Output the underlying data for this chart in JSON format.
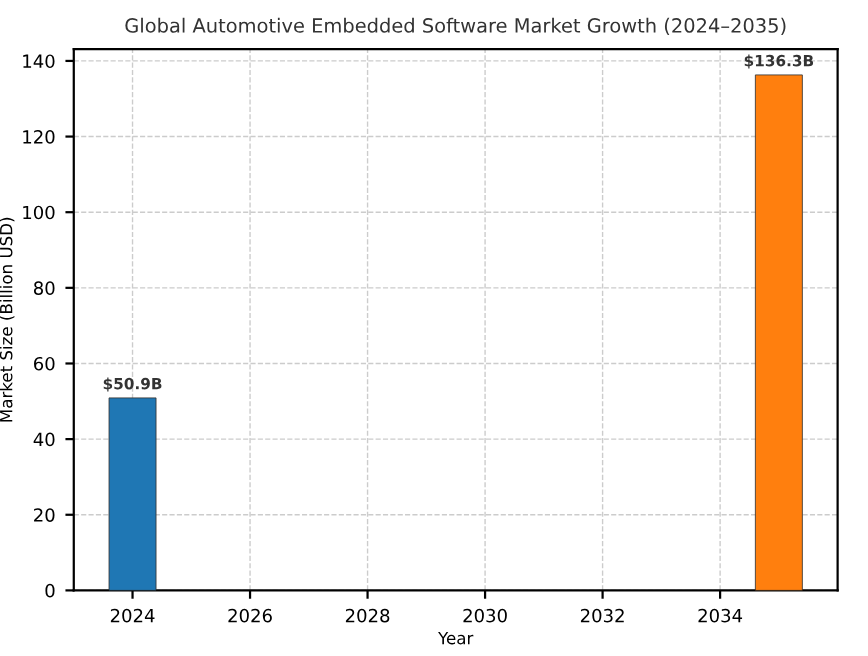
{
  "chart_data": {
    "type": "bar",
    "title": "Global Automotive Embedded Software Market Growth (2024–2035)",
    "xlabel": "Year",
    "ylabel": "Market Size (Billion USD)",
    "x": [
      2024,
      2035
    ],
    "values": [
      50.9,
      136.3
    ],
    "colors": [
      "#1f77b4",
      "#ff7f0e"
    ],
    "value_labels": [
      "$50.9B",
      "$136.3B"
    ],
    "xlim": [
      2023,
      2036
    ],
    "xticks": [
      2024,
      2026,
      2028,
      2030,
      2032,
      2034
    ],
    "ylim": [
      0,
      143.1
    ],
    "yticks": [
      0,
      20,
      40,
      60,
      80,
      100,
      120,
      140
    ],
    "grid": true
  }
}
